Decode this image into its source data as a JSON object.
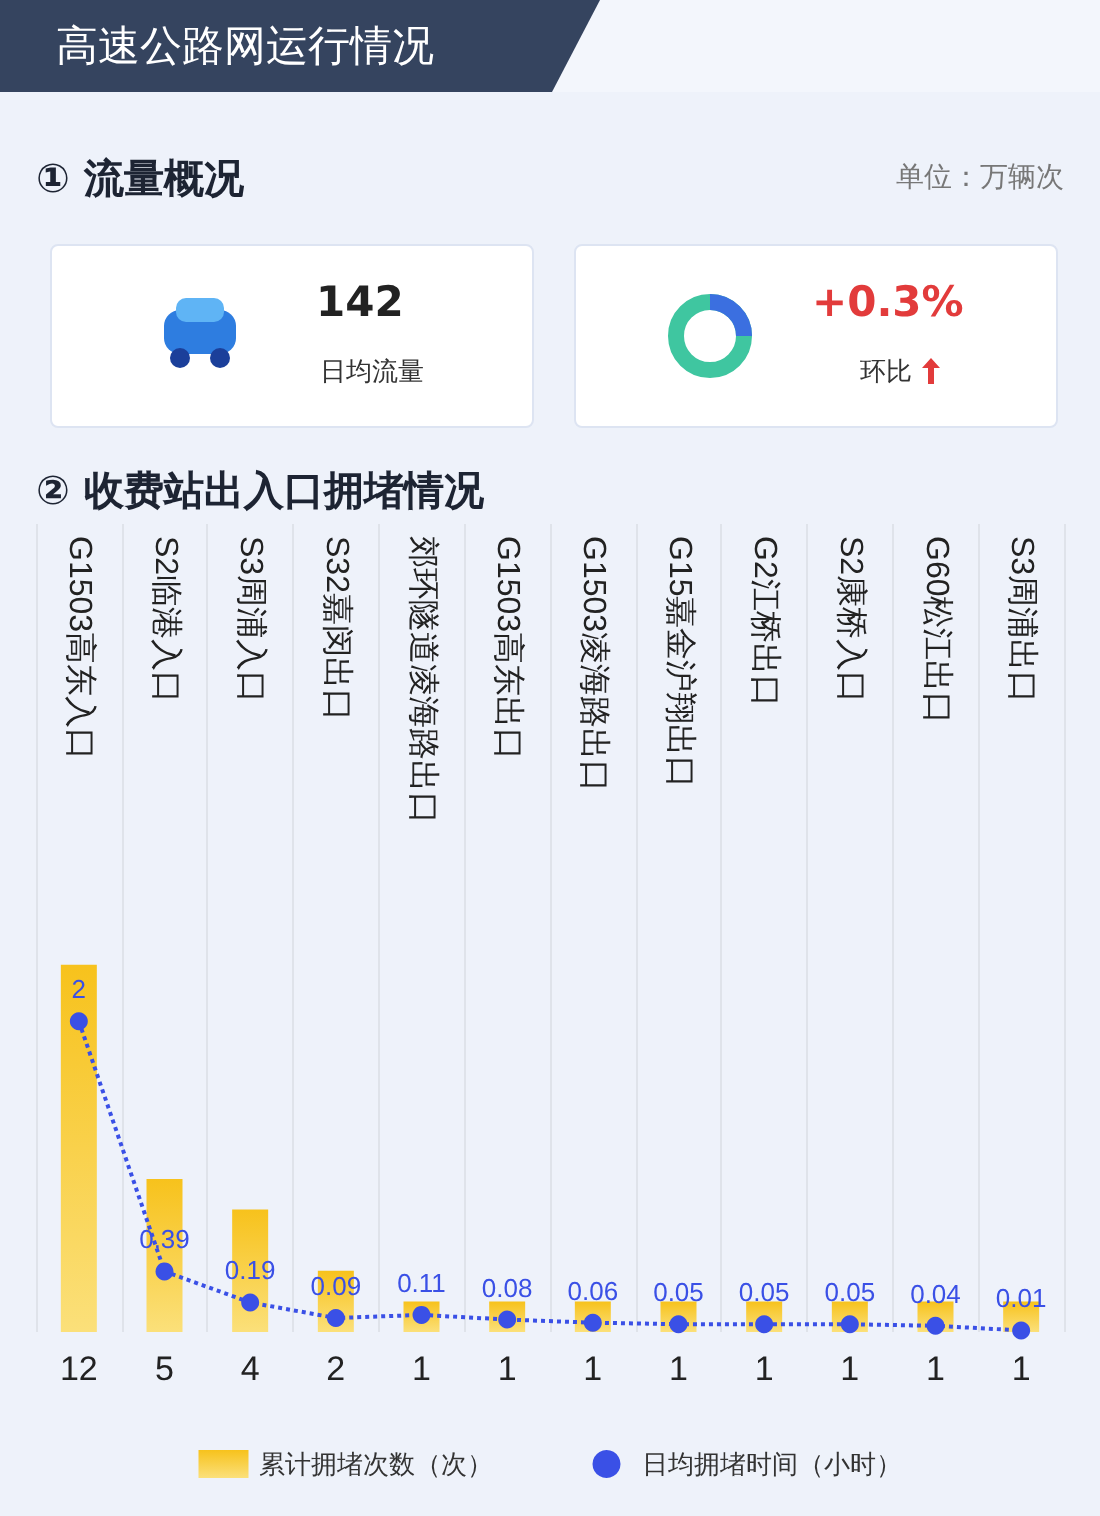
{
  "chart_data": [
    {
      "type": "other",
      "title": "高速公路网运行情况",
      "subtitle": "① 流量概况",
      "annotations": [
        "单位：万辆次",
        "142",
        "日均流量",
        "+0.3%",
        "环比"
      ]
    },
    {
      "type": "bar",
      "title": "② 收费站出入口拥堵情况",
      "categories": [
        "G1503高东入口",
        "S2临港入口",
        "S3周浦入口",
        "S32嘉闵出口",
        "郊环隧道凌海路出口",
        "G1503高东出口",
        "G1503凌海路出口",
        "G15嘉金沪翔出口",
        "G2江桥出口",
        "S2康桥入口",
        "G60松江出口",
        "S3周浦出口"
      ],
      "series": [
        {
          "name": "累计拥堵次数（次）",
          "type": "bar",
          "color": "#f7c21c",
          "values": [
            12,
            5,
            4,
            2,
            1,
            1,
            1,
            1,
            1,
            1,
            1,
            1
          ]
        },
        {
          "name": "日均拥堵时间（小时）",
          "type": "line",
          "axis": "y2",
          "color": "#3a50e6",
          "values": [
            2,
            0.39,
            0.19,
            0.09,
            0.11,
            0.08,
            0.06,
            0.05,
            0.05,
            0.05,
            0.04,
            0.01
          ]
        }
      ],
      "data_labels": true,
      "legend": "bottom",
      "marker": "circle",
      "line_style": "dotted",
      "grid": "x",
      "tick_labels": "x"
    }
  ]
}
